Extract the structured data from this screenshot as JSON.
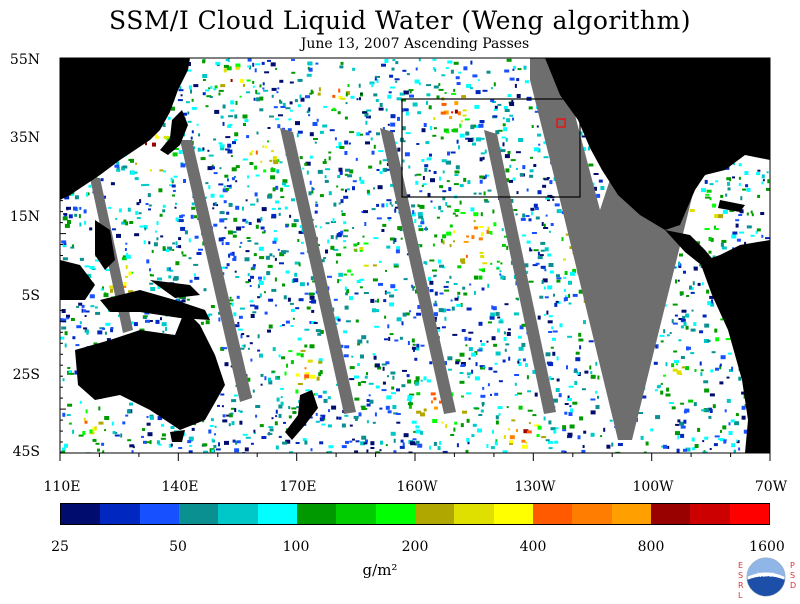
{
  "title": "SSM/I Cloud Liquid Water (Weng algorithm)",
  "subtitle": "June 13, 2007  Ascending Passes",
  "map": {
    "lat_labels": [
      "55N",
      "35N",
      "15N",
      "5S",
      "25S",
      "45S"
    ],
    "lon_labels": [
      "110E",
      "140E",
      "170E",
      "160W",
      "130W",
      "100W",
      "70W"
    ],
    "colors": {
      "land": "#000000",
      "no_data": "#6e6e6e",
      "low_cloud": "#ffffff",
      "box": "#000000",
      "marker": "#ff0000"
    }
  },
  "colorbar": {
    "colors": [
      "#000d6e",
      "#0028c0",
      "#1750ff",
      "#0a9090",
      "#00c8c8",
      "#00ffff",
      "#009900",
      "#00cc00",
      "#00ff00",
      "#b0a800",
      "#e0e000",
      "#ffff00",
      "#ff5a00",
      "#ff7d00",
      "#ffa000",
      "#990000",
      "#cc0000",
      "#ff0000"
    ],
    "tick_labels": [
      "25",
      "50",
      "100",
      "200",
      "400",
      "800",
      "1600"
    ],
    "units": "g/m²"
  },
  "logo": {
    "left_text": "ESRL",
    "right_text": "PSD",
    "center_text": "NOAA"
  }
}
